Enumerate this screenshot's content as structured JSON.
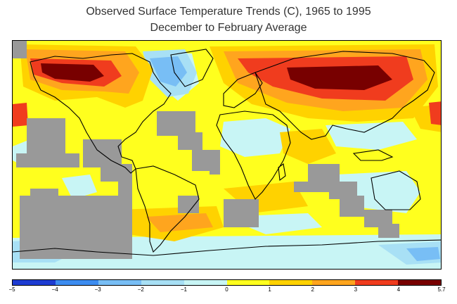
{
  "title": {
    "line1": "Observed Surface Temperature Trends (C), 1965 to 1995",
    "line2": "December to February Average"
  },
  "legend": {
    "ticks": [
      "−5",
      "−4",
      "−3",
      "−2",
      "−1",
      "0",
      "1",
      "2",
      "3",
      "4",
      "5.7"
    ],
    "colors": [
      "#1e3cd2",
      "#3c8cf0",
      "#78bef5",
      "#a8e0f5",
      "#c8f5f5",
      "#ffff1e",
      "#ffd200",
      "#ffa51e",
      "#f03c1e",
      "#780000"
    ]
  },
  "map": {
    "missing_data_color": "#999999",
    "coastline_color": "#000000"
  }
}
